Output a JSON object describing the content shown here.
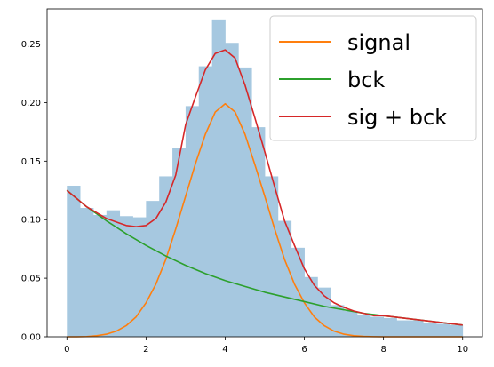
{
  "chart_data": {
    "type": "histogram+line",
    "title": "",
    "xlabel": "",
    "ylabel": "",
    "xlim": [
      -0.5,
      10.5
    ],
    "ylim": [
      0,
      0.28
    ],
    "grid": false,
    "legend_placement": "top-right",
    "x_ticks": [
      0,
      2,
      4,
      6,
      8,
      10
    ],
    "x_tick_labels": [
      "0",
      "2",
      "4",
      "6",
      "8",
      "10"
    ],
    "y_ticks": [
      0.0,
      0.05,
      0.1,
      0.15,
      0.2,
      0.25
    ],
    "y_tick_labels": [
      "0.00",
      "0.05",
      "0.10",
      "0.15",
      "0.20",
      "0.25"
    ],
    "histogram": {
      "color": "#a6c8e0",
      "bin_edges": [
        0,
        0.333,
        0.667,
        1.0,
        1.333,
        1.667,
        2.0,
        2.333,
        2.667,
        3.0,
        3.333,
        3.667,
        4.0,
        4.333,
        4.667,
        5.0,
        5.333,
        5.667,
        6.0,
        6.333,
        6.667,
        7.0,
        7.333,
        7.667,
        8.0,
        8.333,
        8.667,
        9.0,
        9.333,
        9.667,
        10.0
      ],
      "heights": [
        0.129,
        0.11,
        0.104,
        0.108,
        0.103,
        0.102,
        0.116,
        0.137,
        0.161,
        0.197,
        0.231,
        0.271,
        0.251,
        0.23,
        0.179,
        0.137,
        0.099,
        0.076,
        0.051,
        0.042,
        0.027,
        0.022,
        0.019,
        0.017,
        0.016,
        0.014,
        0.014,
        0.012,
        0.011,
        0.01
      ]
    },
    "series": [
      {
        "name": "signal",
        "color": "#ff7f0e",
        "x": [
          0,
          0.25,
          0.5,
          0.75,
          1.0,
          1.25,
          1.5,
          1.75,
          2.0,
          2.25,
          2.5,
          2.75,
          3.0,
          3.25,
          3.5,
          3.75,
          4.0,
          4.25,
          4.5,
          4.75,
          5.0,
          5.25,
          5.5,
          5.75,
          6.0,
          6.25,
          6.5,
          6.75,
          7.0,
          7.25,
          7.5,
          7.75,
          8.0,
          8.5,
          9.0,
          9.5,
          10.0
        ],
        "y": [
          0.0,
          0.0,
          0.0002,
          0.0009,
          0.0022,
          0.0048,
          0.0095,
          0.017,
          0.029,
          0.045,
          0.066,
          0.092,
          0.12,
          0.148,
          0.173,
          0.192,
          0.199,
          0.192,
          0.173,
          0.147,
          0.12,
          0.092,
          0.066,
          0.045,
          0.029,
          0.017,
          0.0095,
          0.0048,
          0.0022,
          0.0009,
          0.0003,
          0.0001,
          0.0,
          0.0,
          0.0,
          0.0,
          0.0
        ]
      },
      {
        "name": "bck",
        "color": "#2ca02c",
        "x": [
          0,
          0.5,
          1.0,
          1.5,
          2.0,
          2.5,
          3.0,
          3.5,
          4.0,
          4.5,
          5.0,
          5.5,
          6.0,
          6.5,
          7.0,
          7.5,
          8.0,
          8.5,
          9.0,
          9.5,
          10.0
        ],
        "y": [
          0.125,
          0.111,
          0.099,
          0.088,
          0.078,
          0.069,
          0.061,
          0.054,
          0.048,
          0.043,
          0.038,
          0.034,
          0.03,
          0.026,
          0.023,
          0.02,
          0.018,
          0.016,
          0.014,
          0.012,
          0.01
        ]
      },
      {
        "name": "sig + bck",
        "color": "#d62728",
        "x": [
          0,
          0.25,
          0.5,
          0.75,
          1.0,
          1.25,
          1.5,
          1.75,
          2.0,
          2.25,
          2.5,
          2.75,
          3.0,
          3.25,
          3.5,
          3.75,
          4.0,
          4.25,
          4.5,
          4.75,
          5.0,
          5.25,
          5.5,
          5.75,
          6.0,
          6.25,
          6.5,
          6.75,
          7.0,
          7.25,
          7.5,
          7.75,
          8.0,
          8.5,
          9.0,
          9.5,
          10.0
        ],
        "y": [
          0.125,
          0.118,
          0.111,
          0.106,
          0.101,
          0.098,
          0.095,
          0.094,
          0.095,
          0.101,
          0.115,
          0.138,
          0.181,
          0.205,
          0.228,
          0.242,
          0.245,
          0.238,
          0.215,
          0.187,
          0.158,
          0.128,
          0.099,
          0.078,
          0.058,
          0.044,
          0.035,
          0.029,
          0.025,
          0.022,
          0.02,
          0.018,
          0.018,
          0.016,
          0.014,
          0.012,
          0.01
        ]
      }
    ]
  }
}
